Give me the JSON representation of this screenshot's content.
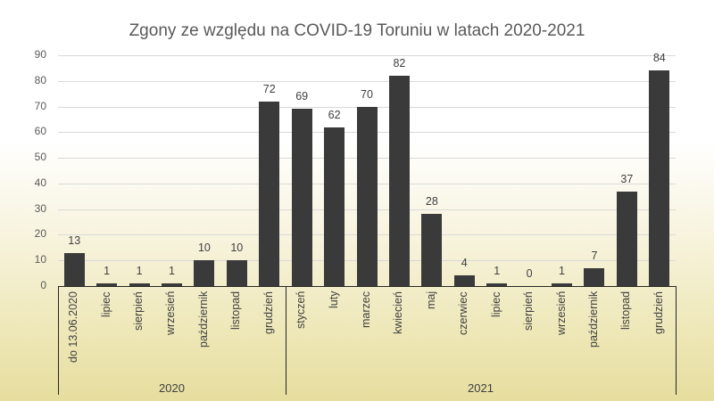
{
  "chart_data": {
    "type": "bar",
    "title": "Zgony ze względu na COVID-19 Toruniu w latach 2020-2021",
    "xlabel": "",
    "ylabel": "",
    "ylim": [
      0,
      90
    ],
    "yticks": [
      0,
      10,
      20,
      30,
      40,
      50,
      60,
      70,
      80,
      90
    ],
    "grid": true,
    "legend": null,
    "bar_color": "#3a3a3a",
    "categories": [
      "do 13.06.2020",
      "lipiec",
      "sierpień",
      "wrzesień",
      "październik",
      "listopad",
      "grudzień",
      "styczeń",
      "luty",
      "marzec",
      "kwiecień",
      "maj",
      "czerwiec",
      "lipiec",
      "sierpień",
      "wrzesień",
      "październik",
      "listopad",
      "grudzień"
    ],
    "groups": [
      {
        "label": "2020",
        "start": 0,
        "end": 6
      },
      {
        "label": "2021",
        "start": 7,
        "end": 18
      }
    ],
    "values": [
      13,
      1,
      1,
      1,
      10,
      10,
      72,
      69,
      62,
      70,
      82,
      28,
      4,
      1,
      0,
      1,
      7,
      37,
      84
    ]
  }
}
